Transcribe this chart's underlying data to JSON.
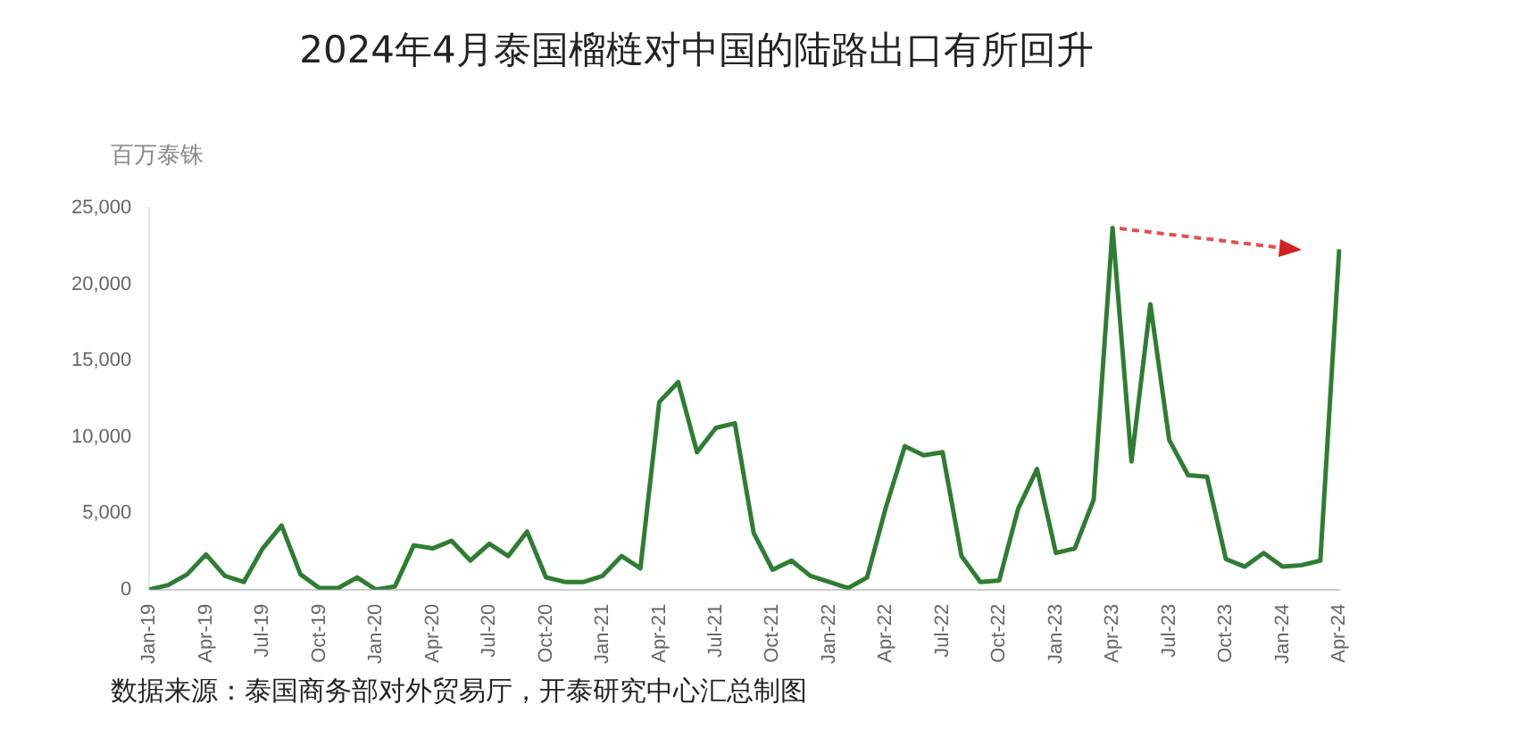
{
  "chart_data": {
    "type": "line",
    "title": "2024年4月泰国榴梿对中国的陆路出口有所回升",
    "ylabel": "百万泰铢",
    "annotations": [
      "数据来源：泰国商务部对外贸易厅，开泰研究中心汇总制图"
    ],
    "categories": [
      "Jan-19",
      null,
      null,
      "Apr-19",
      null,
      null,
      "Jul-19",
      null,
      null,
      "Oct-19",
      null,
      null,
      "Jan-20",
      null,
      null,
      "Apr-20",
      null,
      null,
      "Jul-20",
      null,
      null,
      "Oct-20",
      null,
      null,
      "Jan-21",
      null,
      null,
      "Apr-21",
      null,
      null,
      "Jul-21",
      null,
      null,
      "Oct-21",
      null,
      null,
      "Jan-22",
      null,
      null,
      "Apr-22",
      null,
      null,
      "Jul-22",
      null,
      null,
      "Oct-22",
      null,
      null,
      "Jan-23",
      null,
      null,
      "Apr-23",
      null,
      null,
      "Jul-23",
      null,
      null,
      "Oct-23",
      null,
      null,
      "Jan-24",
      null,
      null,
      "Apr-24"
    ],
    "series": [
      {
        "color": "#2e7d32",
        "values": [
          0,
          300,
          1000,
          2300,
          900,
          500,
          2700,
          4200,
          1000,
          100,
          100,
          800,
          0,
          200,
          2900,
          2700,
          3200,
          1900,
          3000,
          2200,
          3800,
          800,
          500,
          500,
          900,
          2200,
          1400,
          12300,
          13600,
          9000,
          10600,
          10900,
          3700,
          1300,
          1900,
          900,
          500,
          100,
          800,
          5400,
          9400,
          8800,
          9000,
          2200,
          500,
          600,
          5300,
          7900,
          2400,
          2700,
          5900,
          23700,
          8400,
          18700,
          9800,
          7500,
          7400,
          2000,
          1500,
          2400,
          1500,
          1600,
          1900,
          22300
        ]
      }
    ],
    "ylim": [
      0,
      25000
    ],
    "yticks": [
      0,
      {
        "value": 5000,
        "label": "5,000"
      },
      {
        "value": 10000,
        "label": "10,000"
      },
      {
        "value": 15000,
        "label": "15,000"
      },
      {
        "value": 20000,
        "label": "20,000"
      },
      {
        "value": 25000,
        "label": "25,000"
      }
    ],
    "grid": false,
    "legend": false,
    "marker": "none",
    "line_style": "solid"
  }
}
